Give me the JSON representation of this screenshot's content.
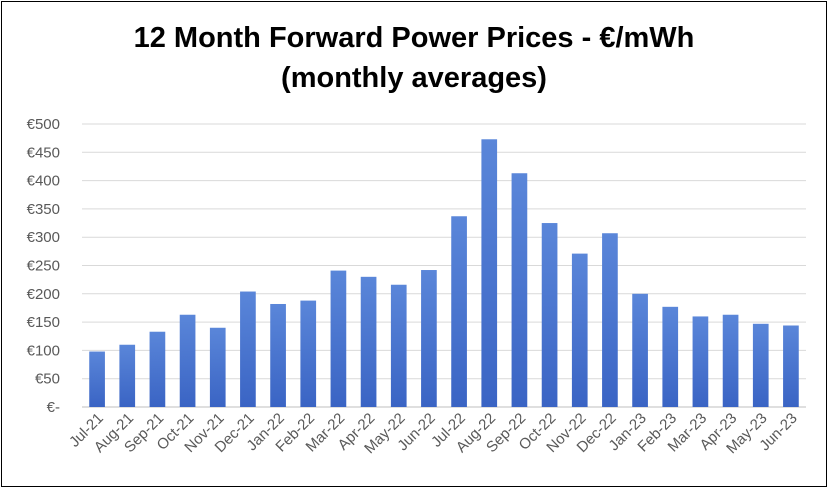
{
  "chart_data": {
    "type": "bar",
    "title_line1": "12 Month Forward Power Prices - €/mWh",
    "title_line2": "(monthly averages)",
    "categories": [
      "Jul-21",
      "Aug-21",
      "Sep-21",
      "Oct-21",
      "Nov-21",
      "Dec-21",
      "Jan-22",
      "Feb-22",
      "Mar-22",
      "Apr-22",
      "May-22",
      "Jun-22",
      "Jul-22",
      "Aug-22",
      "Sep-22",
      "Oct-22",
      "Nov-22",
      "Dec-22",
      "Jan-23",
      "Feb-23",
      "Mar-23",
      "Apr-23",
      "May-23",
      "Jun-23"
    ],
    "values": [
      98,
      110,
      133,
      163,
      140,
      204,
      182,
      188,
      241,
      230,
      216,
      242,
      337,
      473,
      413,
      325,
      271,
      307,
      200,
      177,
      160,
      163,
      147,
      144
    ],
    "ylim": [
      0,
      500
    ],
    "yticks": [
      0,
      50,
      100,
      150,
      200,
      250,
      300,
      350,
      400,
      450,
      500
    ],
    "ytick_labels": [
      "€-",
      "€50",
      "€100",
      "€150",
      "€200",
      "€250",
      "€300",
      "€350",
      "€400",
      "€450",
      "€500"
    ],
    "grid": true,
    "bar_color_top": "#5a86d9",
    "bar_color_bottom": "#3a64c4"
  }
}
